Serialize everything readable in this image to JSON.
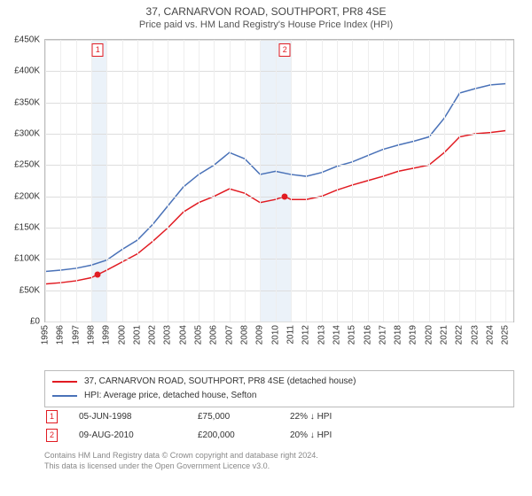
{
  "title": "37, CARNARVON ROAD, SOUTHPORT, PR8 4SE",
  "subtitle": "Price paid vs. HM Land Registry's House Price Index (HPI)",
  "chart": {
    "type": "line",
    "background_color": "#ffffff",
    "grid_color": "#dddddd",
    "axis_color": "#bbbbbb",
    "x": {
      "min": 1995,
      "max": 2025.5,
      "ticks": [
        1995,
        1996,
        1997,
        1998,
        1999,
        2000,
        2001,
        2002,
        2003,
        2004,
        2005,
        2006,
        2007,
        2008,
        2009,
        2010,
        2011,
        2012,
        2013,
        2014,
        2015,
        2016,
        2017,
        2018,
        2019,
        2020,
        2021,
        2022,
        2023,
        2024,
        2025
      ]
    },
    "y": {
      "min": 0,
      "max": 450000,
      "tick_step": 50000,
      "prefix": "£",
      "suffix": "K",
      "divide": 1000
    },
    "shaded_bands": [
      {
        "from": 1998,
        "to": 1999,
        "color": "#e3ecf7"
      },
      {
        "from": 2009,
        "to": 2011,
        "color": "#e3ecf7"
      }
    ],
    "series": [
      {
        "id": "price_paid",
        "label": "37, CARNARVON ROAD, SOUTHPORT, PR8 4SE (detached house)",
        "color": "#e11b22",
        "line_width": 1.5,
        "points": [
          [
            1995,
            60000
          ],
          [
            1996,
            62000
          ],
          [
            1997,
            65000
          ],
          [
            1998,
            70000
          ],
          [
            1998.42,
            75000
          ],
          [
            1999,
            82000
          ],
          [
            2000,
            95000
          ],
          [
            2001,
            108000
          ],
          [
            2002,
            128000
          ],
          [
            2003,
            150000
          ],
          [
            2004,
            175000
          ],
          [
            2005,
            190000
          ],
          [
            2006,
            200000
          ],
          [
            2007,
            212000
          ],
          [
            2008,
            205000
          ],
          [
            2009,
            190000
          ],
          [
            2010,
            195000
          ],
          [
            2010.61,
            200000
          ],
          [
            2011,
            195000
          ],
          [
            2012,
            195000
          ],
          [
            2013,
            200000
          ],
          [
            2014,
            210000
          ],
          [
            2015,
            218000
          ],
          [
            2016,
            225000
          ],
          [
            2017,
            232000
          ],
          [
            2018,
            240000
          ],
          [
            2019,
            245000
          ],
          [
            2020,
            250000
          ],
          [
            2021,
            270000
          ],
          [
            2022,
            295000
          ],
          [
            2023,
            300000
          ],
          [
            2024,
            302000
          ],
          [
            2025,
            305000
          ]
        ]
      },
      {
        "id": "hpi",
        "label": "HPI: Average price, detached house, Sefton",
        "color": "#4a72b8",
        "line_width": 1.5,
        "points": [
          [
            1995,
            80000
          ],
          [
            1996,
            82000
          ],
          [
            1997,
            85000
          ],
          [
            1998,
            90000
          ],
          [
            1999,
            98000
          ],
          [
            2000,
            115000
          ],
          [
            2001,
            130000
          ],
          [
            2002,
            155000
          ],
          [
            2003,
            185000
          ],
          [
            2004,
            215000
          ],
          [
            2005,
            235000
          ],
          [
            2006,
            250000
          ],
          [
            2007,
            270000
          ],
          [
            2008,
            260000
          ],
          [
            2009,
            235000
          ],
          [
            2010,
            240000
          ],
          [
            2011,
            235000
          ],
          [
            2012,
            232000
          ],
          [
            2013,
            238000
          ],
          [
            2014,
            248000
          ],
          [
            2015,
            255000
          ],
          [
            2016,
            265000
          ],
          [
            2017,
            275000
          ],
          [
            2018,
            282000
          ],
          [
            2019,
            288000
          ],
          [
            2020,
            295000
          ],
          [
            2021,
            325000
          ],
          [
            2022,
            365000
          ],
          [
            2023,
            372000
          ],
          [
            2024,
            378000
          ],
          [
            2025,
            380000
          ]
        ]
      }
    ],
    "markers": [
      {
        "n": 1,
        "x": 1998.42,
        "y": 75000,
        "color": "#e11b22"
      },
      {
        "n": 2,
        "x": 2010.61,
        "y": 200000,
        "color": "#e11b22"
      }
    ],
    "tick_fontsize": 10,
    "title_fontsize": 12
  },
  "legend": {
    "items": [
      {
        "color": "#e11b22",
        "series": 0
      },
      {
        "color": "#4a72b8",
        "series": 1
      }
    ]
  },
  "sales": [
    {
      "n": 1,
      "date": "05-JUN-1998",
      "price": "£75,000",
      "delta": "22% ↓ HPI",
      "color": "#e11b22"
    },
    {
      "n": 2,
      "date": "09-AUG-2010",
      "price": "£200,000",
      "delta": "20% ↓ HPI",
      "color": "#e11b22"
    }
  ],
  "footer": {
    "line1": "Contains HM Land Registry data © Crown copyright and database right 2024.",
    "line2": "This data is licensed under the Open Government Licence v3.0."
  }
}
